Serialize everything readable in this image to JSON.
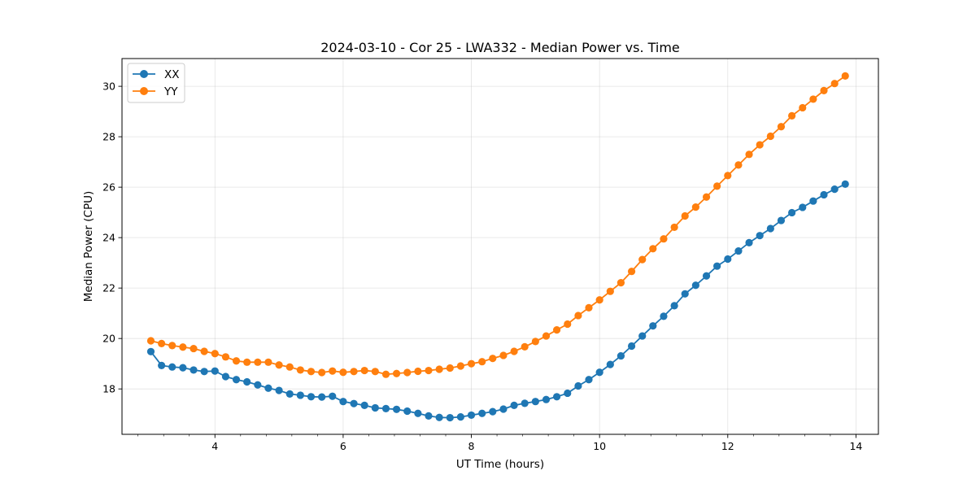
{
  "chart_data": {
    "type": "line",
    "title": "2024-03-10 - Cor 25 - LWA332 - Median Power vs. Time",
    "xlabel": "UT Time (hours)",
    "ylabel": "Median Power (CPU)",
    "xlim": [
      2.55,
      14.35
    ],
    "ylim": [
      16.2,
      31.1
    ],
    "x_ticks": [
      4,
      6,
      8,
      10,
      12,
      14
    ],
    "x_tick_labels": [
      "4",
      "6",
      "8",
      "10",
      "12",
      "14"
    ],
    "x_minor_tick_step": 0.4,
    "y_ticks": [
      18,
      20,
      22,
      24,
      26,
      28,
      30
    ],
    "y_tick_labels": [
      "18",
      "20",
      "22",
      "24",
      "26",
      "28",
      "30"
    ],
    "grid": true,
    "legend_position": "top-left",
    "x": [
      3.0,
      3.167,
      3.333,
      3.5,
      3.667,
      3.833,
      4.0,
      4.167,
      4.333,
      4.5,
      4.667,
      4.833,
      5.0,
      5.167,
      5.333,
      5.5,
      5.667,
      5.833,
      6.0,
      6.167,
      6.333,
      6.5,
      6.667,
      6.833,
      7.0,
      7.167,
      7.333,
      7.5,
      7.667,
      7.833,
      8.0,
      8.167,
      8.333,
      8.5,
      8.667,
      8.833,
      9.0,
      9.167,
      9.333,
      9.5,
      9.667,
      9.833,
      10.0,
      10.167,
      10.333,
      10.5,
      10.667,
      10.833,
      11.0,
      11.167,
      11.333,
      11.5,
      11.667,
      11.833,
      12.0,
      12.167,
      12.333,
      12.5,
      12.667,
      12.833,
      13.0,
      13.167,
      13.333,
      13.5,
      13.667,
      13.833
    ],
    "series": [
      {
        "name": "XX",
        "color": "#1f77b4",
        "values": [
          19.48,
          18.93,
          18.87,
          18.84,
          18.75,
          18.69,
          18.71,
          18.49,
          18.37,
          18.28,
          18.16,
          18.03,
          17.94,
          17.8,
          17.75,
          17.69,
          17.68,
          17.71,
          17.5,
          17.42,
          17.35,
          17.25,
          17.22,
          17.19,
          17.12,
          17.03,
          16.93,
          16.87,
          16.86,
          16.89,
          16.96,
          17.03,
          17.1,
          17.2,
          17.35,
          17.43,
          17.5,
          17.58,
          17.69,
          17.83,
          18.12,
          18.37,
          18.66,
          18.97,
          19.31,
          19.7,
          20.1,
          20.5,
          20.88,
          21.3,
          21.77,
          22.11,
          22.48,
          22.87,
          23.15,
          23.47,
          23.8,
          24.08,
          24.36,
          24.68,
          24.99,
          25.2,
          25.45,
          25.7,
          25.92,
          26.12
        ]
      },
      {
        "name": "YY",
        "color": "#ff7f0e",
        "values": [
          19.91,
          19.8,
          19.72,
          19.66,
          19.6,
          19.49,
          19.4,
          19.27,
          19.11,
          19.06,
          19.06,
          19.06,
          18.95,
          18.87,
          18.75,
          18.69,
          18.65,
          18.71,
          18.66,
          18.69,
          18.73,
          18.69,
          18.58,
          18.61,
          18.65,
          18.7,
          18.73,
          18.78,
          18.83,
          18.91,
          19.0,
          19.08,
          19.21,
          19.33,
          19.49,
          19.67,
          19.88,
          20.1,
          20.34,
          20.57,
          20.91,
          21.22,
          21.53,
          21.87,
          22.21,
          22.66,
          23.13,
          23.56,
          23.95,
          24.41,
          24.86,
          25.21,
          25.61,
          26.04,
          26.46,
          26.88,
          27.3,
          27.68,
          28.02,
          28.4,
          28.83,
          29.15,
          29.49,
          29.83,
          30.11,
          30.41
        ]
      }
    ]
  }
}
